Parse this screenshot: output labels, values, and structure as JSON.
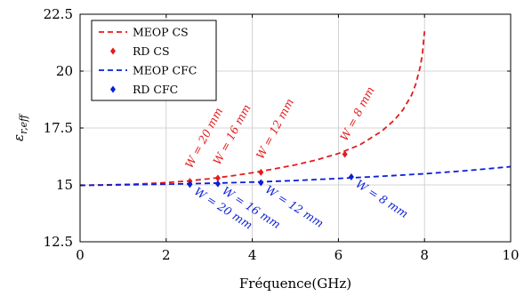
{
  "chart_data": {
    "type": "line",
    "xlabel": "Fréquence(GHz)",
    "ylabel": "ε",
    "ylabel_sub": "r,eff",
    "xlim": [
      0,
      10
    ],
    "ylim": [
      12.5,
      22.5
    ],
    "xticks": [
      0,
      2,
      4,
      6,
      8,
      10
    ],
    "yticks": [
      12.5,
      15,
      17.5,
      20,
      22.5
    ],
    "xtick_labels": [
      "0",
      "2",
      "4",
      "6",
      "8",
      "10"
    ],
    "ytick_labels": [
      "12.5",
      "15",
      "17.5",
      "20",
      "22.5"
    ],
    "grid": true,
    "legend_position": "top-left",
    "series": [
      {
        "name": "MEOP CS",
        "style": "dashed-line",
        "color": "#e41a1c",
        "x": [
          0,
          0.5,
          1,
          1.5,
          2,
          2.5,
          3,
          3.5,
          4,
          4.5,
          5,
          5.5,
          6,
          6.5,
          7,
          7.3,
          7.5,
          7.7,
          7.8,
          7.9,
          7.95,
          8.0
        ],
        "y": [
          14.98,
          15.0,
          15.02,
          15.05,
          15.1,
          15.17,
          15.27,
          15.39,
          15.53,
          15.7,
          15.88,
          16.1,
          16.38,
          16.76,
          17.35,
          17.85,
          18.3,
          18.95,
          19.45,
          20.2,
          20.75,
          21.75
        ]
      },
      {
        "name": "RD CS",
        "style": "markers",
        "color": "#e41a1c",
        "x": [
          2.55,
          3.2,
          4.2,
          6.15
        ],
        "y": [
          15.15,
          15.3,
          15.55,
          16.35
        ]
      },
      {
        "name": "MEOP CFC",
        "style": "dashed-line",
        "color": "#0a1ed8",
        "x": [
          0,
          1,
          2,
          3,
          4,
          5,
          6,
          7,
          8,
          9,
          10
        ],
        "y": [
          14.98,
          15.0,
          15.03,
          15.07,
          15.12,
          15.19,
          15.28,
          15.38,
          15.49,
          15.63,
          15.8
        ]
      },
      {
        "name": "RD CFC",
        "style": "markers",
        "color": "#0a1ed8",
        "x": [
          2.55,
          3.2,
          4.2,
          6.3
        ],
        "y": [
          15.02,
          15.05,
          15.1,
          15.35
        ]
      }
    ],
    "annotations": [
      {
        "text": "W = 20 mm",
        "color": "#e41a1c",
        "x": 2.55,
        "y": 15.15,
        "side": "above"
      },
      {
        "text": "W = 16 mm",
        "color": "#e41a1c",
        "x": 3.2,
        "y": 15.3,
        "side": "above"
      },
      {
        "text": "W = 12 mm",
        "color": "#e41a1c",
        "x": 4.2,
        "y": 15.55,
        "side": "above"
      },
      {
        "text": "W = 8 mm",
        "color": "#e41a1c",
        "x": 6.15,
        "y": 16.35,
        "side": "above"
      },
      {
        "text": "W = 20 mm",
        "color": "#0a1ed8",
        "x": 2.55,
        "y": 15.02,
        "side": "below"
      },
      {
        "text": "W = 16 mm",
        "color": "#0a1ed8",
        "x": 3.2,
        "y": 15.05,
        "side": "below"
      },
      {
        "text": "W = 12 mm",
        "color": "#0a1ed8",
        "x": 4.2,
        "y": 15.1,
        "side": "below"
      },
      {
        "text": "W = 8 mm",
        "color": "#0a1ed8",
        "x": 6.3,
        "y": 15.35,
        "side": "below"
      }
    ]
  }
}
